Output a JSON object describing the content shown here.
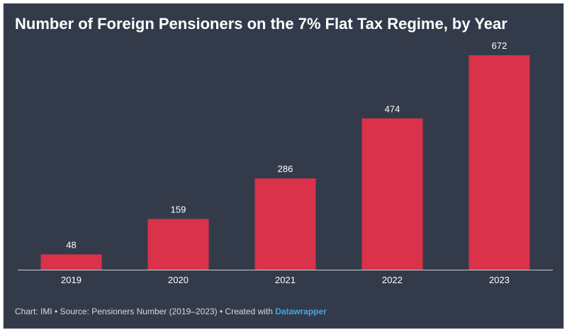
{
  "chart_data": {
    "type": "bar",
    "title": "Number of Foreign Pensioners on the 7% Flat Tax Regime, by Year",
    "categories": [
      "2019",
      "2020",
      "2021",
      "2022",
      "2023"
    ],
    "values": [
      48,
      159,
      286,
      474,
      672
    ],
    "xlabel": "",
    "ylabel": "",
    "ylim": [
      0,
      672
    ],
    "grid": false,
    "legend": "none",
    "bar_color": "#d9324a",
    "background_color": "#333b4a"
  },
  "footer": {
    "credit_prefix": "Chart: IMI • Source: Pensioners Number (2019–2023) • Created with ",
    "brand": "Datawrapper"
  }
}
